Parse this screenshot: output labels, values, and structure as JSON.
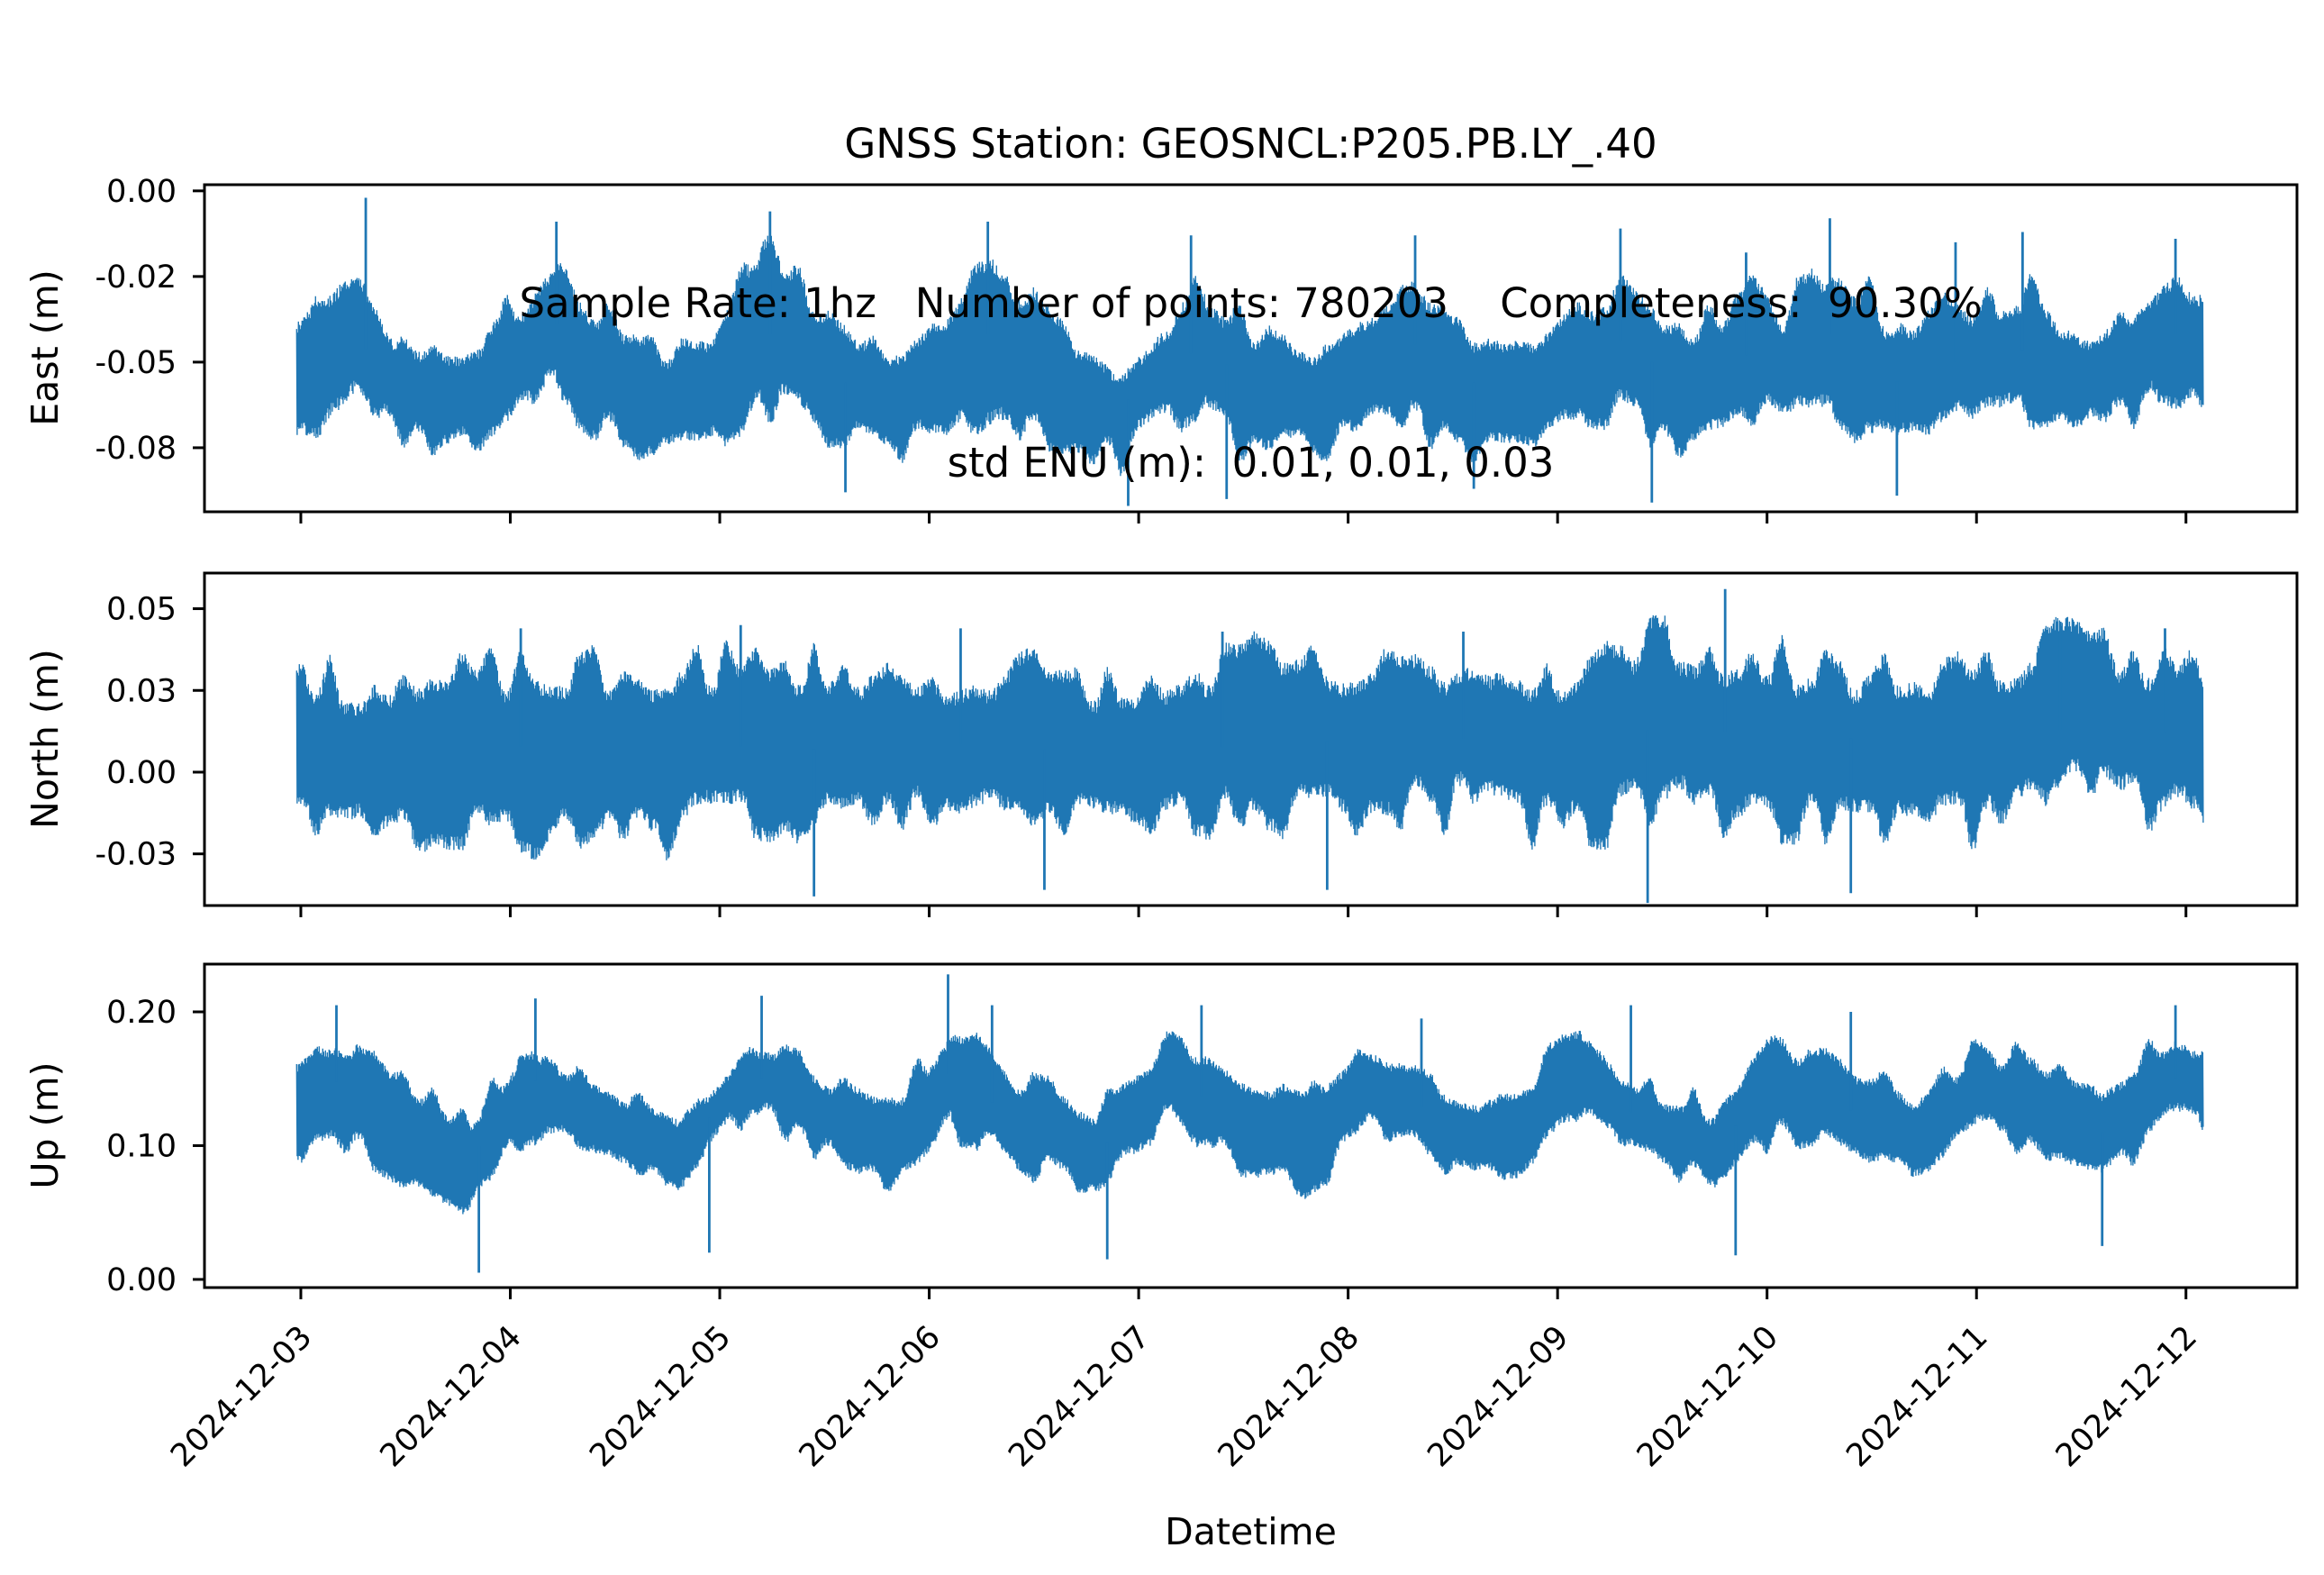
{
  "figure": {
    "background": "#ffffff",
    "axis_color": "#000000",
    "line_color": "#1f77b4",
    "title_lines": [
      "GNSS Station: GEOSNCL:P205.PB.LY_.40",
      "Sample Rate: 1hz   Number of points: 780203    Completeness:  90.30%",
      "std ENU (m):  0.01, 0.01, 0.03"
    ],
    "station": "GEOSNCL:P205.PB.LY_.40",
    "sample_rate": "1hz",
    "number_of_points": "780203",
    "completeness_percent": "90.30%",
    "std_enu_m": "0.01, 0.01, 0.03"
  },
  "x_axis": {
    "label": "Datetime",
    "xlim_days": [
      -0.46,
      9.53
    ],
    "tick_days": [
      0,
      1,
      2,
      3,
      4,
      5,
      6,
      7,
      8,
      9
    ],
    "tick_labels": [
      "2024-12-03",
      "2024-12-04",
      "2024-12-05",
      "2024-12-06",
      "2024-12-07",
      "2024-12-08",
      "2024-12-09",
      "2024-12-10",
      "2024-12-11",
      "2024-12-12"
    ],
    "data_range_days": [
      -0.02,
      9.08
    ]
  },
  "chart_data": [
    {
      "type": "line",
      "name": "East",
      "ylabel": "East (m)",
      "color": "#1f77b4",
      "ylim": [
        -0.0937,
        0.0018
      ],
      "yticks": {
        "values": [
          0.0,
          -0.025,
          -0.05,
          -0.075
        ],
        "labels": [
          "0.00",
          "-0.02",
          "-0.05",
          "-0.08"
        ]
      },
      "seed": 11,
      "band": [
        [
          -0.02,
          -0.05,
          0.02
        ],
        [
          0.1,
          -0.046,
          0.021
        ],
        [
          0.22,
          -0.04,
          0.022
        ],
        [
          0.45,
          -0.056,
          0.018
        ],
        [
          0.7,
          -0.06,
          0.016
        ],
        [
          0.95,
          -0.055,
          0.018
        ],
        [
          1.2,
          -0.038,
          0.022
        ],
        [
          1.45,
          -0.052,
          0.019
        ],
        [
          1.7,
          -0.06,
          0.016
        ],
        [
          1.95,
          -0.058,
          0.017
        ],
        [
          2.2,
          -0.04,
          0.022
        ],
        [
          2.5,
          -0.054,
          0.018
        ],
        [
          2.8,
          -0.06,
          0.016
        ],
        [
          3.05,
          -0.052,
          0.018
        ],
        [
          3.3,
          -0.041,
          0.022
        ],
        [
          3.6,
          -0.056,
          0.018
        ],
        [
          3.9,
          -0.064,
          0.017
        ],
        [
          4.1,
          -0.052,
          0.019
        ],
        [
          4.3,
          -0.046,
          0.021
        ],
        [
          4.6,
          -0.058,
          0.017
        ],
        [
          4.9,
          -0.062,
          0.016
        ],
        [
          5.1,
          -0.052,
          0.018
        ],
        [
          5.3,
          -0.044,
          0.021
        ],
        [
          5.6,
          -0.056,
          0.018
        ],
        [
          5.9,
          -0.06,
          0.016
        ],
        [
          6.1,
          -0.05,
          0.018
        ],
        [
          6.3,
          -0.044,
          0.021
        ],
        [
          6.6,
          -0.056,
          0.018
        ],
        [
          6.9,
          -0.048,
          0.019
        ],
        [
          7.1,
          -0.052,
          0.018
        ],
        [
          7.3,
          -0.042,
          0.022
        ],
        [
          7.6,
          -0.056,
          0.018
        ],
        [
          7.9,
          -0.05,
          0.019
        ],
        [
          8.2,
          -0.046,
          0.02
        ],
        [
          8.5,
          -0.056,
          0.017
        ],
        [
          8.75,
          -0.05,
          0.018
        ],
        [
          8.95,
          -0.042,
          0.021
        ],
        [
          9.08,
          -0.048,
          0.019
        ]
      ],
      "spikes": [
        [
          0.31,
          -0.002
        ],
        [
          1.22,
          -0.009
        ],
        [
          2.24,
          -0.006
        ],
        [
          3.28,
          -0.009
        ],
        [
          4.25,
          -0.013
        ],
        [
          5.32,
          -0.013
        ],
        [
          6.3,
          -0.011
        ],
        [
          6.9,
          -0.018
        ],
        [
          7.3,
          -0.008
        ],
        [
          7.9,
          -0.015
        ],
        [
          8.22,
          -0.012
        ],
        [
          8.95,
          -0.014
        ],
        [
          2.6,
          -0.088
        ],
        [
          3.95,
          -0.092
        ],
        [
          4.42,
          -0.09
        ],
        [
          5.6,
          -0.087
        ],
        [
          6.45,
          -0.091
        ],
        [
          7.62,
          -0.089
        ]
      ]
    },
    {
      "type": "line",
      "name": "North",
      "ylabel": "North (m)",
      "color": "#1f77b4",
      "ylim": [
        -0.0408,
        0.0609
      ],
      "yticks": {
        "values": [
          0.05,
          0.025,
          0.0,
          -0.025
        ],
        "labels": [
          "0.05",
          "0.03",
          "0.00",
          "-0.03"
        ]
      },
      "seed": 23,
      "band": [
        [
          -0.02,
          0.007,
          0.024
        ],
        [
          0.5,
          0.006,
          0.025
        ],
        [
          1.0,
          0.008,
          0.024
        ],
        [
          1.5,
          0.006,
          0.025
        ],
        [
          2.0,
          0.008,
          0.025
        ],
        [
          2.5,
          0.007,
          0.024
        ],
        [
          3.0,
          0.009,
          0.025
        ],
        [
          3.5,
          0.007,
          0.024
        ],
        [
          4.0,
          0.006,
          0.024
        ],
        [
          4.5,
          0.008,
          0.025
        ],
        [
          5.0,
          0.01,
          0.025
        ],
        [
          5.5,
          0.01,
          0.026
        ],
        [
          6.0,
          0.012,
          0.026
        ],
        [
          6.5,
          0.013,
          0.027
        ],
        [
          7.0,
          0.012,
          0.026
        ],
        [
          7.5,
          0.01,
          0.025
        ],
        [
          8.0,
          0.012,
          0.026
        ],
        [
          8.5,
          0.013,
          0.026
        ],
        [
          9.08,
          0.012,
          0.026
        ]
      ],
      "spikes": [
        [
          1.05,
          0.044
        ],
        [
          2.1,
          0.045
        ],
        [
          3.15,
          0.044
        ],
        [
          4.4,
          0.043
        ],
        [
          5.55,
          0.043
        ],
        [
          6.8,
          0.056
        ],
        [
          8.4,
          0.046
        ],
        [
          8.9,
          0.044
        ],
        [
          2.45,
          -0.038
        ],
        [
          3.55,
          -0.036
        ],
        [
          4.9,
          -0.036
        ],
        [
          6.43,
          -0.04
        ],
        [
          7.4,
          -0.037
        ]
      ]
    },
    {
      "type": "line",
      "name": "Up",
      "ylabel": "Up (m)",
      "color": "#1f77b4",
      "ylim": [
        -0.0061,
        0.2357
      ],
      "yticks": {
        "values": [
          0.2,
          0.1,
          0.0
        ],
        "labels": [
          "0.20",
          "0.10",
          "0.00"
        ]
      },
      "seed": 37,
      "band": [
        [
          -0.02,
          0.135,
          0.035
        ],
        [
          0.15,
          0.15,
          0.037
        ],
        [
          0.45,
          0.115,
          0.034
        ],
        [
          0.8,
          0.09,
          0.033
        ],
        [
          1.1,
          0.15,
          0.037
        ],
        [
          1.45,
          0.12,
          0.034
        ],
        [
          1.8,
          0.095,
          0.033
        ],
        [
          2.15,
          0.155,
          0.037
        ],
        [
          2.5,
          0.12,
          0.034
        ],
        [
          2.8,
          0.1,
          0.033
        ],
        [
          3.1,
          0.155,
          0.038
        ],
        [
          3.45,
          0.115,
          0.034
        ],
        [
          3.8,
          0.095,
          0.033
        ],
        [
          4.15,
          0.15,
          0.037
        ],
        [
          4.5,
          0.12,
          0.034
        ],
        [
          4.8,
          0.1,
          0.033
        ],
        [
          5.1,
          0.145,
          0.036
        ],
        [
          5.4,
          0.125,
          0.034
        ],
        [
          5.75,
          0.1,
          0.033
        ],
        [
          6.1,
          0.15,
          0.036
        ],
        [
          6.4,
          0.12,
          0.034
        ],
        [
          6.75,
          0.1,
          0.033
        ],
        [
          7.05,
          0.145,
          0.036
        ],
        [
          7.35,
          0.13,
          0.035
        ],
        [
          7.7,
          0.105,
          0.033
        ],
        [
          8.0,
          0.14,
          0.035
        ],
        [
          8.3,
          0.13,
          0.035
        ],
        [
          8.6,
          0.11,
          0.034
        ],
        [
          8.95,
          0.15,
          0.037
        ],
        [
          9.08,
          0.14,
          0.035
        ]
      ],
      "spikes": [
        [
          0.17,
          0.205
        ],
        [
          1.12,
          0.21
        ],
        [
          2.2,
          0.212
        ],
        [
          3.09,
          0.228
        ],
        [
          3.3,
          0.205
        ],
        [
          4.3,
          0.205
        ],
        [
          5.35,
          0.195
        ],
        [
          6.35,
          0.205
        ],
        [
          7.4,
          0.2
        ],
        [
          8.95,
          0.205
        ],
        [
          0.85,
          0.005
        ],
        [
          1.95,
          0.02
        ],
        [
          3.85,
          0.015
        ],
        [
          6.85,
          0.018
        ],
        [
          8.6,
          0.025
        ]
      ]
    }
  ]
}
